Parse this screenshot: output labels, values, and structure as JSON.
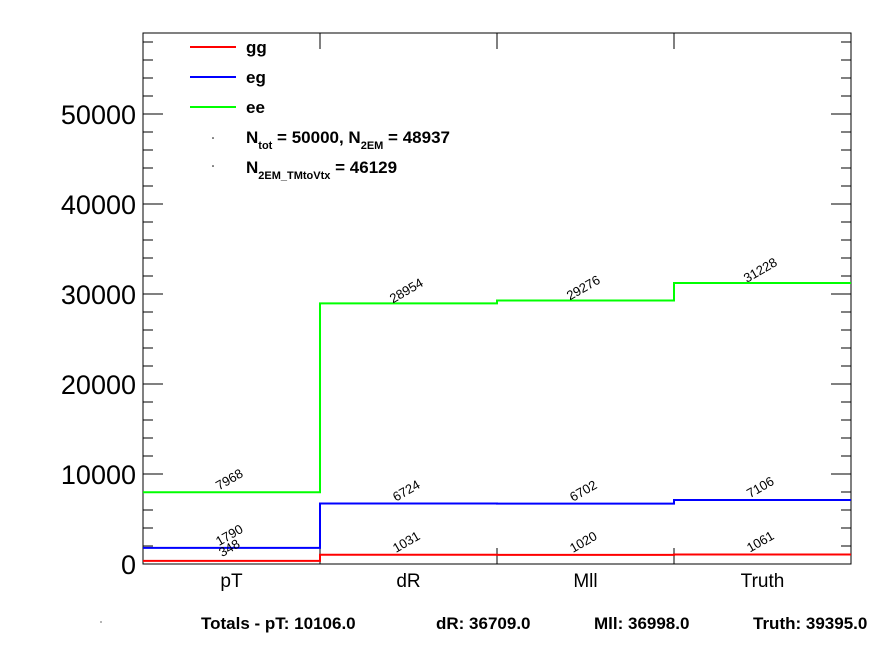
{
  "chart_data": {
    "type": "line",
    "step": true,
    "categories": [
      "pT",
      "dR",
      "Mll",
      "Truth"
    ],
    "series": [
      {
        "name": "gg",
        "color": "#ff0000",
        "values": [
          348,
          1031,
          1020,
          1061
        ]
      },
      {
        "name": "eg",
        "color": "#0000ff",
        "values": [
          1790,
          6724,
          6702,
          7106
        ]
      },
      {
        "name": "ee",
        "color": "#00ff00",
        "values": [
          7968,
          28954,
          29276,
          31228
        ]
      }
    ],
    "yticks": [
      "0",
      "10000",
      "20000",
      "30000",
      "40000",
      "50000"
    ],
    "ylim": [
      0,
      59000
    ],
    "legend_position": "top-left",
    "stats": {
      "line1": {
        "n": "N",
        "tot_sub": "tot",
        "tot_val": " = 50000, N",
        "em_sub": "2EM",
        "em_val": " = 48937"
      },
      "line2": {
        "n": "N",
        "sub": "2EM_TMtoVtx",
        "val": "  = 46129"
      }
    },
    "totals": {
      "prefix": "Totals -  pT: 10106.0",
      "dR": "dR: 36709.0",
      "Mll": "Mll: 36998.0",
      "Truth": "Truth: 39395.0"
    }
  }
}
